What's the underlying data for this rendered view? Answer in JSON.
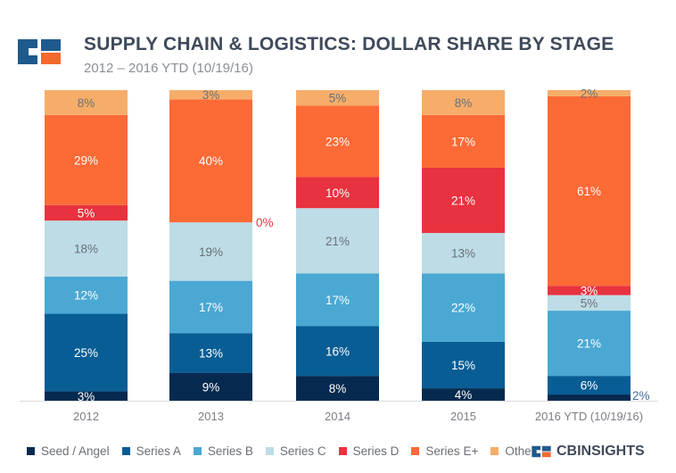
{
  "header": {
    "title": "SUPPLY CHAIN & LOGISTICS: DOLLAR SHARE BY STAGE",
    "subtitle": "2012 – 2016 YTD (10/19/16)"
  },
  "brand": {
    "label": "CBINSIGHTS"
  },
  "colors": {
    "logo_dark": "#1e5a8e",
    "logo_orange": "#f26a2e"
  },
  "chart_data": {
    "type": "bar",
    "stacked": true,
    "normalized_percent": true,
    "categories": [
      "2012",
      "2013",
      "2014",
      "2015",
      "2016 YTD (10/19/16)"
    ],
    "ylim": [
      0,
      100
    ],
    "grid": false,
    "legend_position": "bottom",
    "series": [
      {
        "name": "Seed / Angel",
        "color": "#062a4f",
        "values": [
          3,
          9,
          8,
          4,
          2
        ],
        "labels": [
          "3%",
          "9%",
          "8%",
          "4%",
          "2%"
        ]
      },
      {
        "name": "Series A",
        "color": "#085d94",
        "values": [
          25,
          13,
          16,
          15,
          6
        ],
        "labels": [
          "25%",
          "13%",
          "16%",
          "15%",
          "6%"
        ]
      },
      {
        "name": "Series B",
        "color": "#4aa8d3",
        "values": [
          12,
          17,
          17,
          22,
          21
        ],
        "labels": [
          "12%",
          "17%",
          "17%",
          "22%",
          "21%"
        ]
      },
      {
        "name": "Series C",
        "color": "#bddce6",
        "values": [
          18,
          19,
          21,
          13,
          5
        ],
        "labels": [
          "18%",
          "19%",
          "21%",
          "13%",
          "5%"
        ]
      },
      {
        "name": "Series D",
        "color": "#e8323f",
        "values": [
          5,
          0,
          10,
          21,
          3
        ],
        "labels": [
          "5%",
          "0%",
          "10%",
          "21%",
          "3%"
        ]
      },
      {
        "name": "Series E+",
        "color": "#fc6a36",
        "values": [
          29,
          40,
          23,
          17,
          61
        ],
        "labels": [
          "29%",
          "40%",
          "23%",
          "17%",
          "61%"
        ]
      },
      {
        "name": "Other",
        "color": "#f6ad6a",
        "values": [
          8,
          3,
          5,
          8,
          2
        ],
        "labels": [
          "8%",
          "3%",
          "5%",
          "8%",
          "2%"
        ]
      }
    ]
  }
}
